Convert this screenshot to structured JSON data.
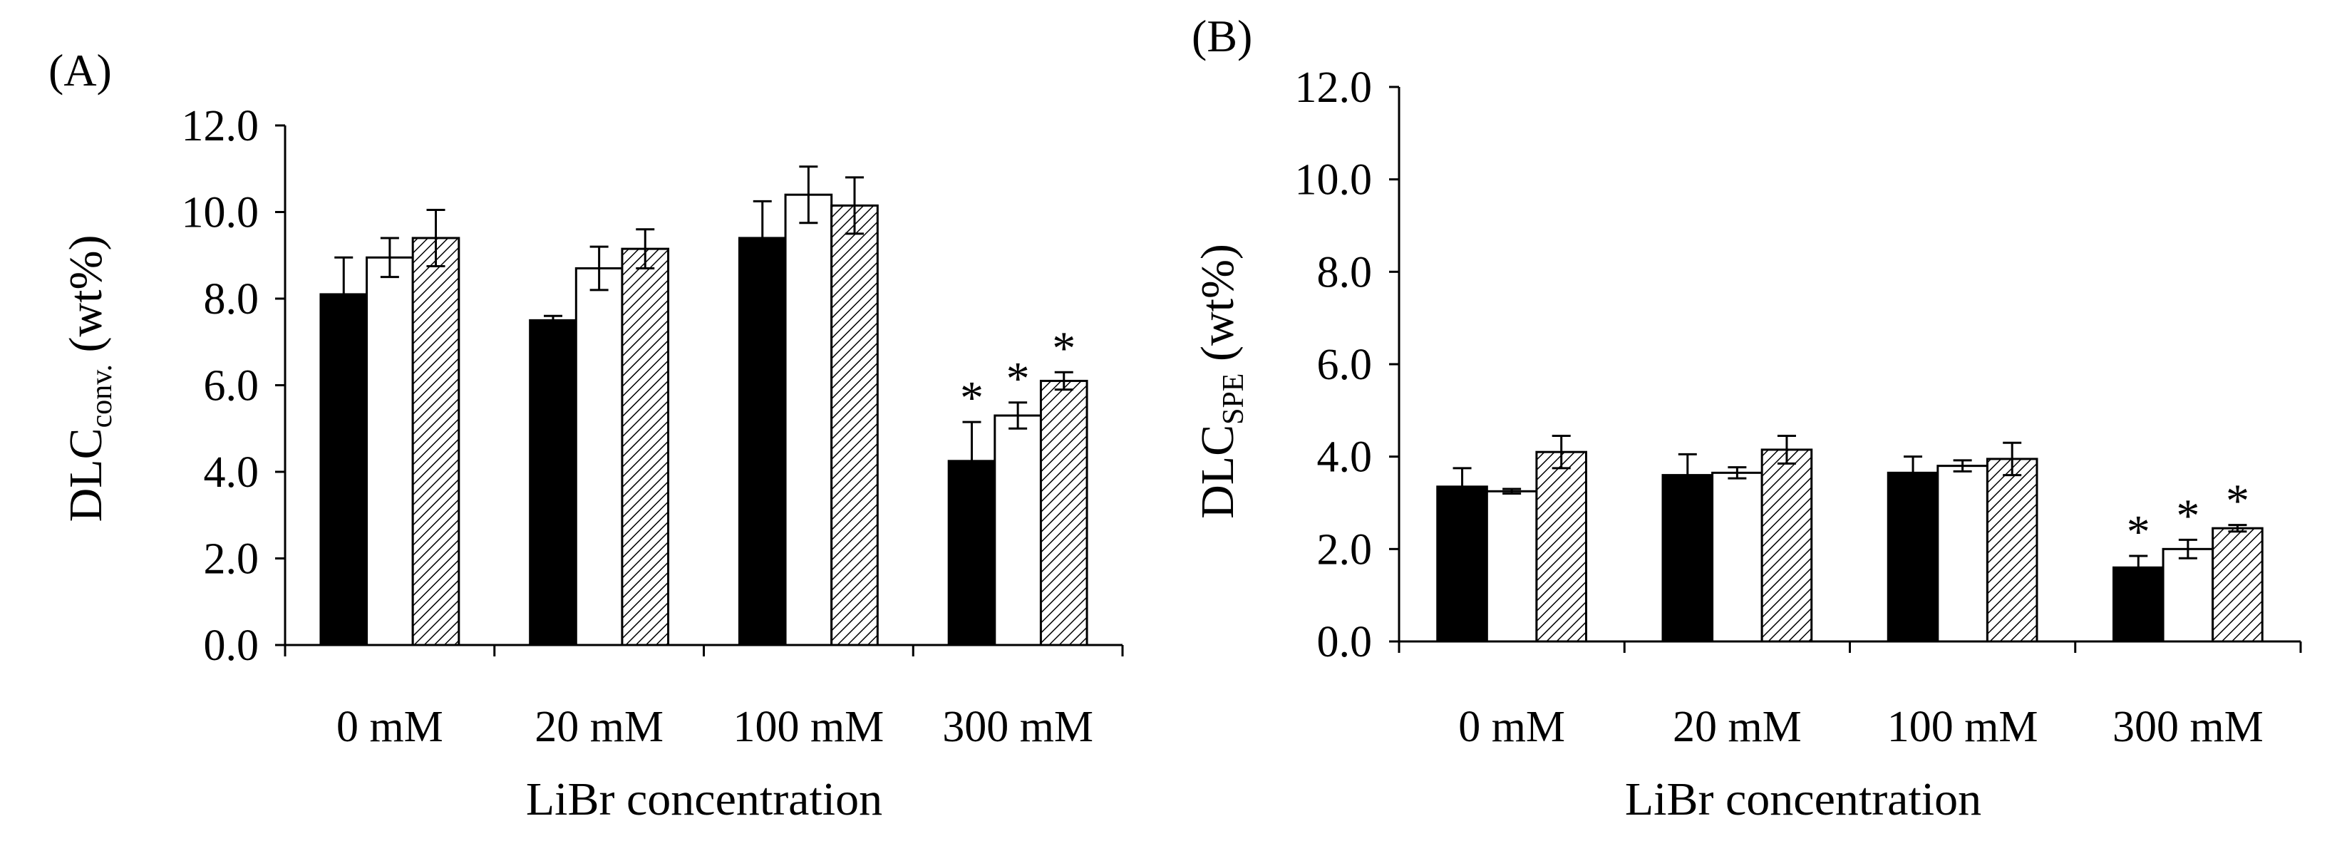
{
  "chart_data": [
    {
      "type": "bar",
      "panel_label": "(A)",
      "ylabel_main": "DLC",
      "ylabel_sub": "conv.",
      "ylabel_unit": " (wt%)",
      "xlabel": "LiBr concentration",
      "categories": [
        "0 mM",
        "20 mM",
        "100 mM",
        "300 mM"
      ],
      "ylim": [
        0,
        12
      ],
      "yticks": [
        "0.0",
        "2.0",
        "4.0",
        "6.0",
        "8.0",
        "10.0",
        "12.0"
      ],
      "series": [
        {
          "fill": "solid",
          "values": [
            8.1,
            7.5,
            9.4,
            4.25
          ],
          "errors": [
            0.85,
            0.1,
            0.85,
            0.9
          ]
        },
        {
          "fill": "white",
          "values": [
            8.95,
            8.7,
            10.4,
            5.3
          ],
          "errors": [
            0.45,
            0.5,
            0.65,
            0.3
          ]
        },
        {
          "fill": "hatched",
          "values": [
            9.4,
            9.15,
            10.15,
            6.1
          ],
          "errors": [
            0.65,
            0.45,
            0.65,
            0.2
          ]
        }
      ],
      "significance_marker": "*",
      "significant_category": "300 mM",
      "grid": false,
      "legend": "none"
    },
    {
      "type": "bar",
      "panel_label": "(B)",
      "ylabel_main": "DLC",
      "ylabel_sub": "SPE",
      "ylabel_unit": " (wt%)",
      "xlabel": "LiBr concentration",
      "categories": [
        "0 mM",
        "20 mM",
        "100 mM",
        "300 mM"
      ],
      "ylim": [
        0,
        12
      ],
      "yticks": [
        "0.0",
        "2.0",
        "4.0",
        "6.0",
        "8.0",
        "10.0",
        "12.0"
      ],
      "series": [
        {
          "fill": "solid",
          "values": [
            3.35,
            3.6,
            3.65,
            1.6
          ],
          "errors": [
            0.4,
            0.45,
            0.35,
            0.25
          ]
        },
        {
          "fill": "white",
          "values": [
            3.25,
            3.65,
            3.8,
            2.0
          ],
          "errors": [
            0.05,
            0.12,
            0.12,
            0.2
          ]
        },
        {
          "fill": "hatched",
          "values": [
            4.1,
            4.15,
            3.95,
            2.45
          ],
          "errors": [
            0.35,
            0.3,
            0.35,
            0.07
          ]
        }
      ],
      "significance_marker": "*",
      "significant_category": "300 mM",
      "grid": false,
      "legend": "none"
    }
  ]
}
